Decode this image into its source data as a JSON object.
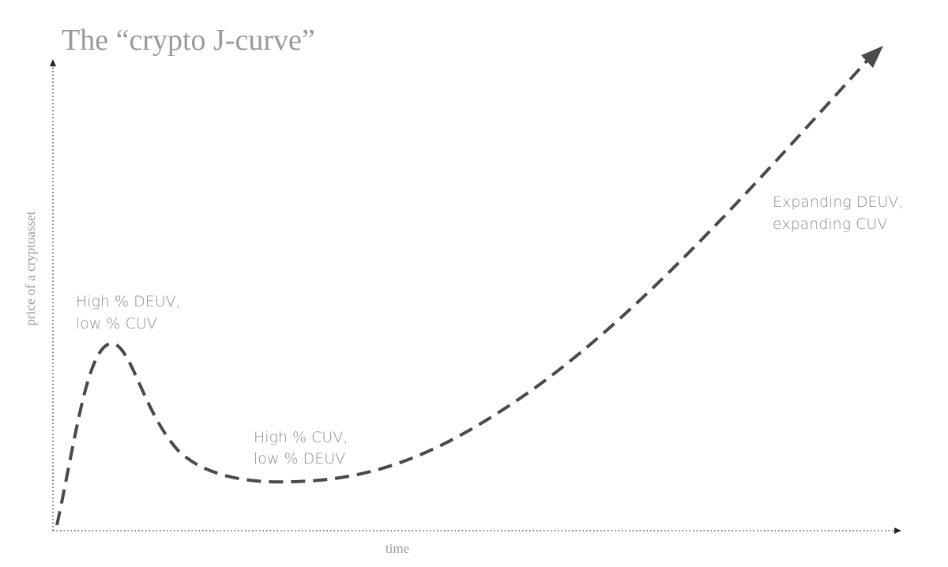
{
  "title": "The “crypto J-curve”",
  "axes": {
    "y_label": "price of a cryptoasset",
    "x_label": "time"
  },
  "annotations": [
    {
      "lines": [
        "High % DEUV,",
        "low % CUV"
      ]
    },
    {
      "lines": [
        "High % CUV,",
        "low % DEUV"
      ]
    },
    {
      "lines": [
        "Expanding DEUV,",
        "expanding CUV"
      ]
    }
  ]
}
